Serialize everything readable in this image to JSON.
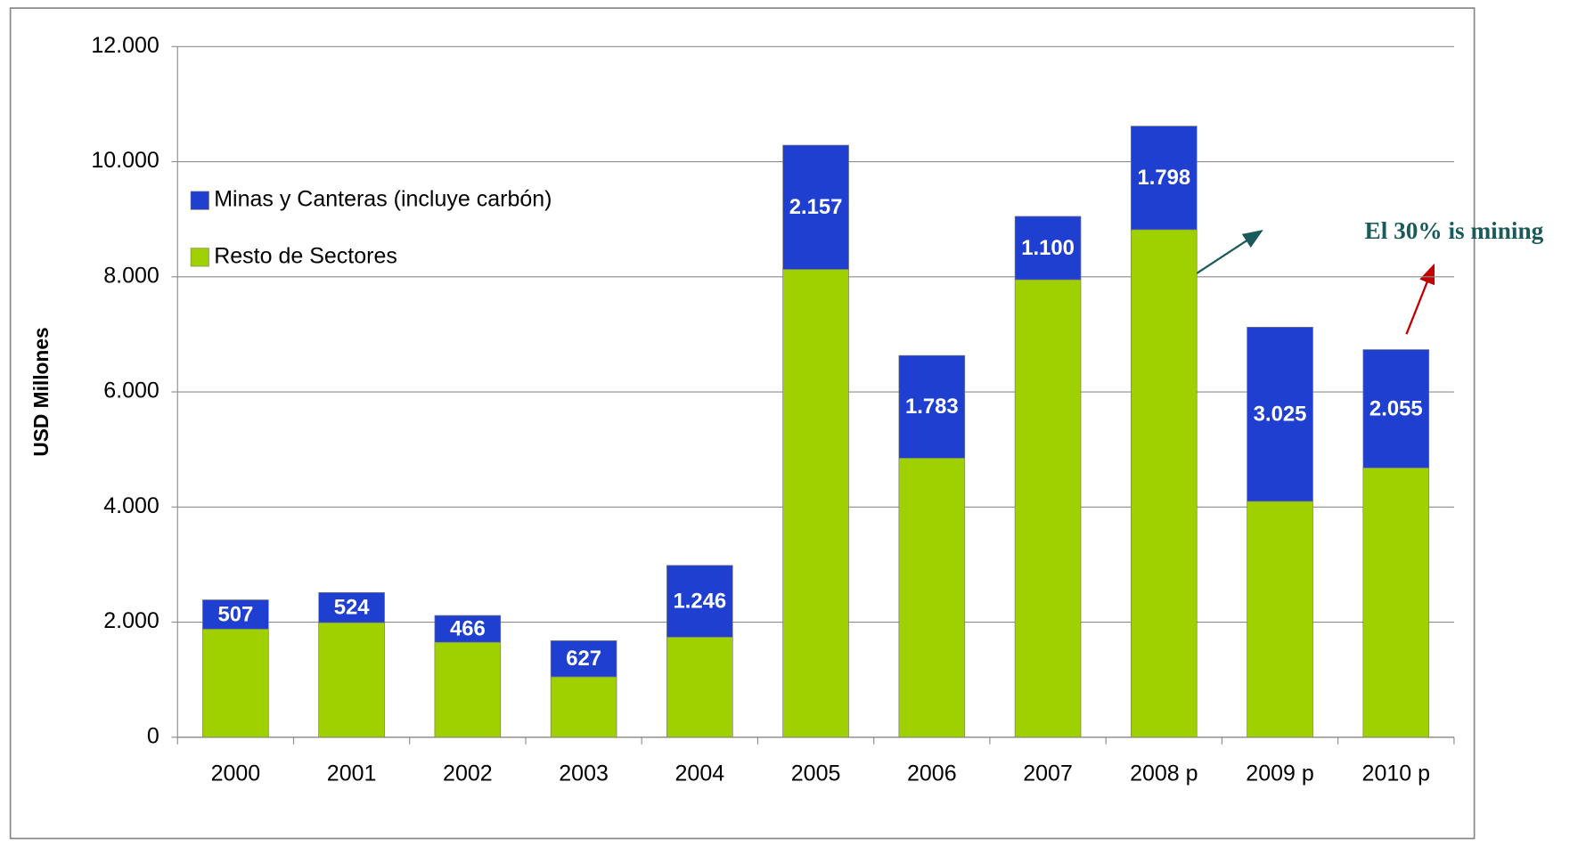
{
  "chart_data": {
    "type": "stacked-bar",
    "y_label": "USD Millones",
    "categories": [
      "2000",
      "2001",
      "2002",
      "2003",
      "2004",
      "2005",
      "2006",
      "2007",
      "2008 p",
      "2009 p",
      "2010 p"
    ],
    "series": [
      {
        "name": "Resto de Sectores",
        "color": "#9fd000",
        "values": [
          1880,
          1990,
          1650,
          1050,
          1740,
          8130,
          4850,
          7950,
          8820,
          4100,
          4680
        ]
      },
      {
        "name": "Minas y Canteras (incluye carbón)",
        "color": "#1f3fd0",
        "values": [
          507,
          524,
          466,
          627,
          1246,
          2157,
          1783,
          1100,
          1798,
          3025,
          2055
        ],
        "value_labels": [
          "507",
          "524",
          "466",
          "627",
          "1.246",
          "2.157",
          "1.783",
          "1.100",
          "1.798",
          "3.025",
          "2.055"
        ]
      }
    ],
    "ylim": [
      0,
      12000
    ],
    "yticks": [
      0,
      {
        "value": 2000,
        "label": "2.000"
      },
      {
        "value": 4000,
        "label": "4.000"
      },
      {
        "value": 6000,
        "label": "6.000"
      },
      {
        "value": 8000,
        "label": "8.000"
      },
      {
        "value": 10000,
        "label": "10.000"
      },
      {
        "value": 12000,
        "label": "12.000"
      }
    ],
    "grid": true,
    "legend": "upper left",
    "annotation": "El 30% is mining"
  }
}
